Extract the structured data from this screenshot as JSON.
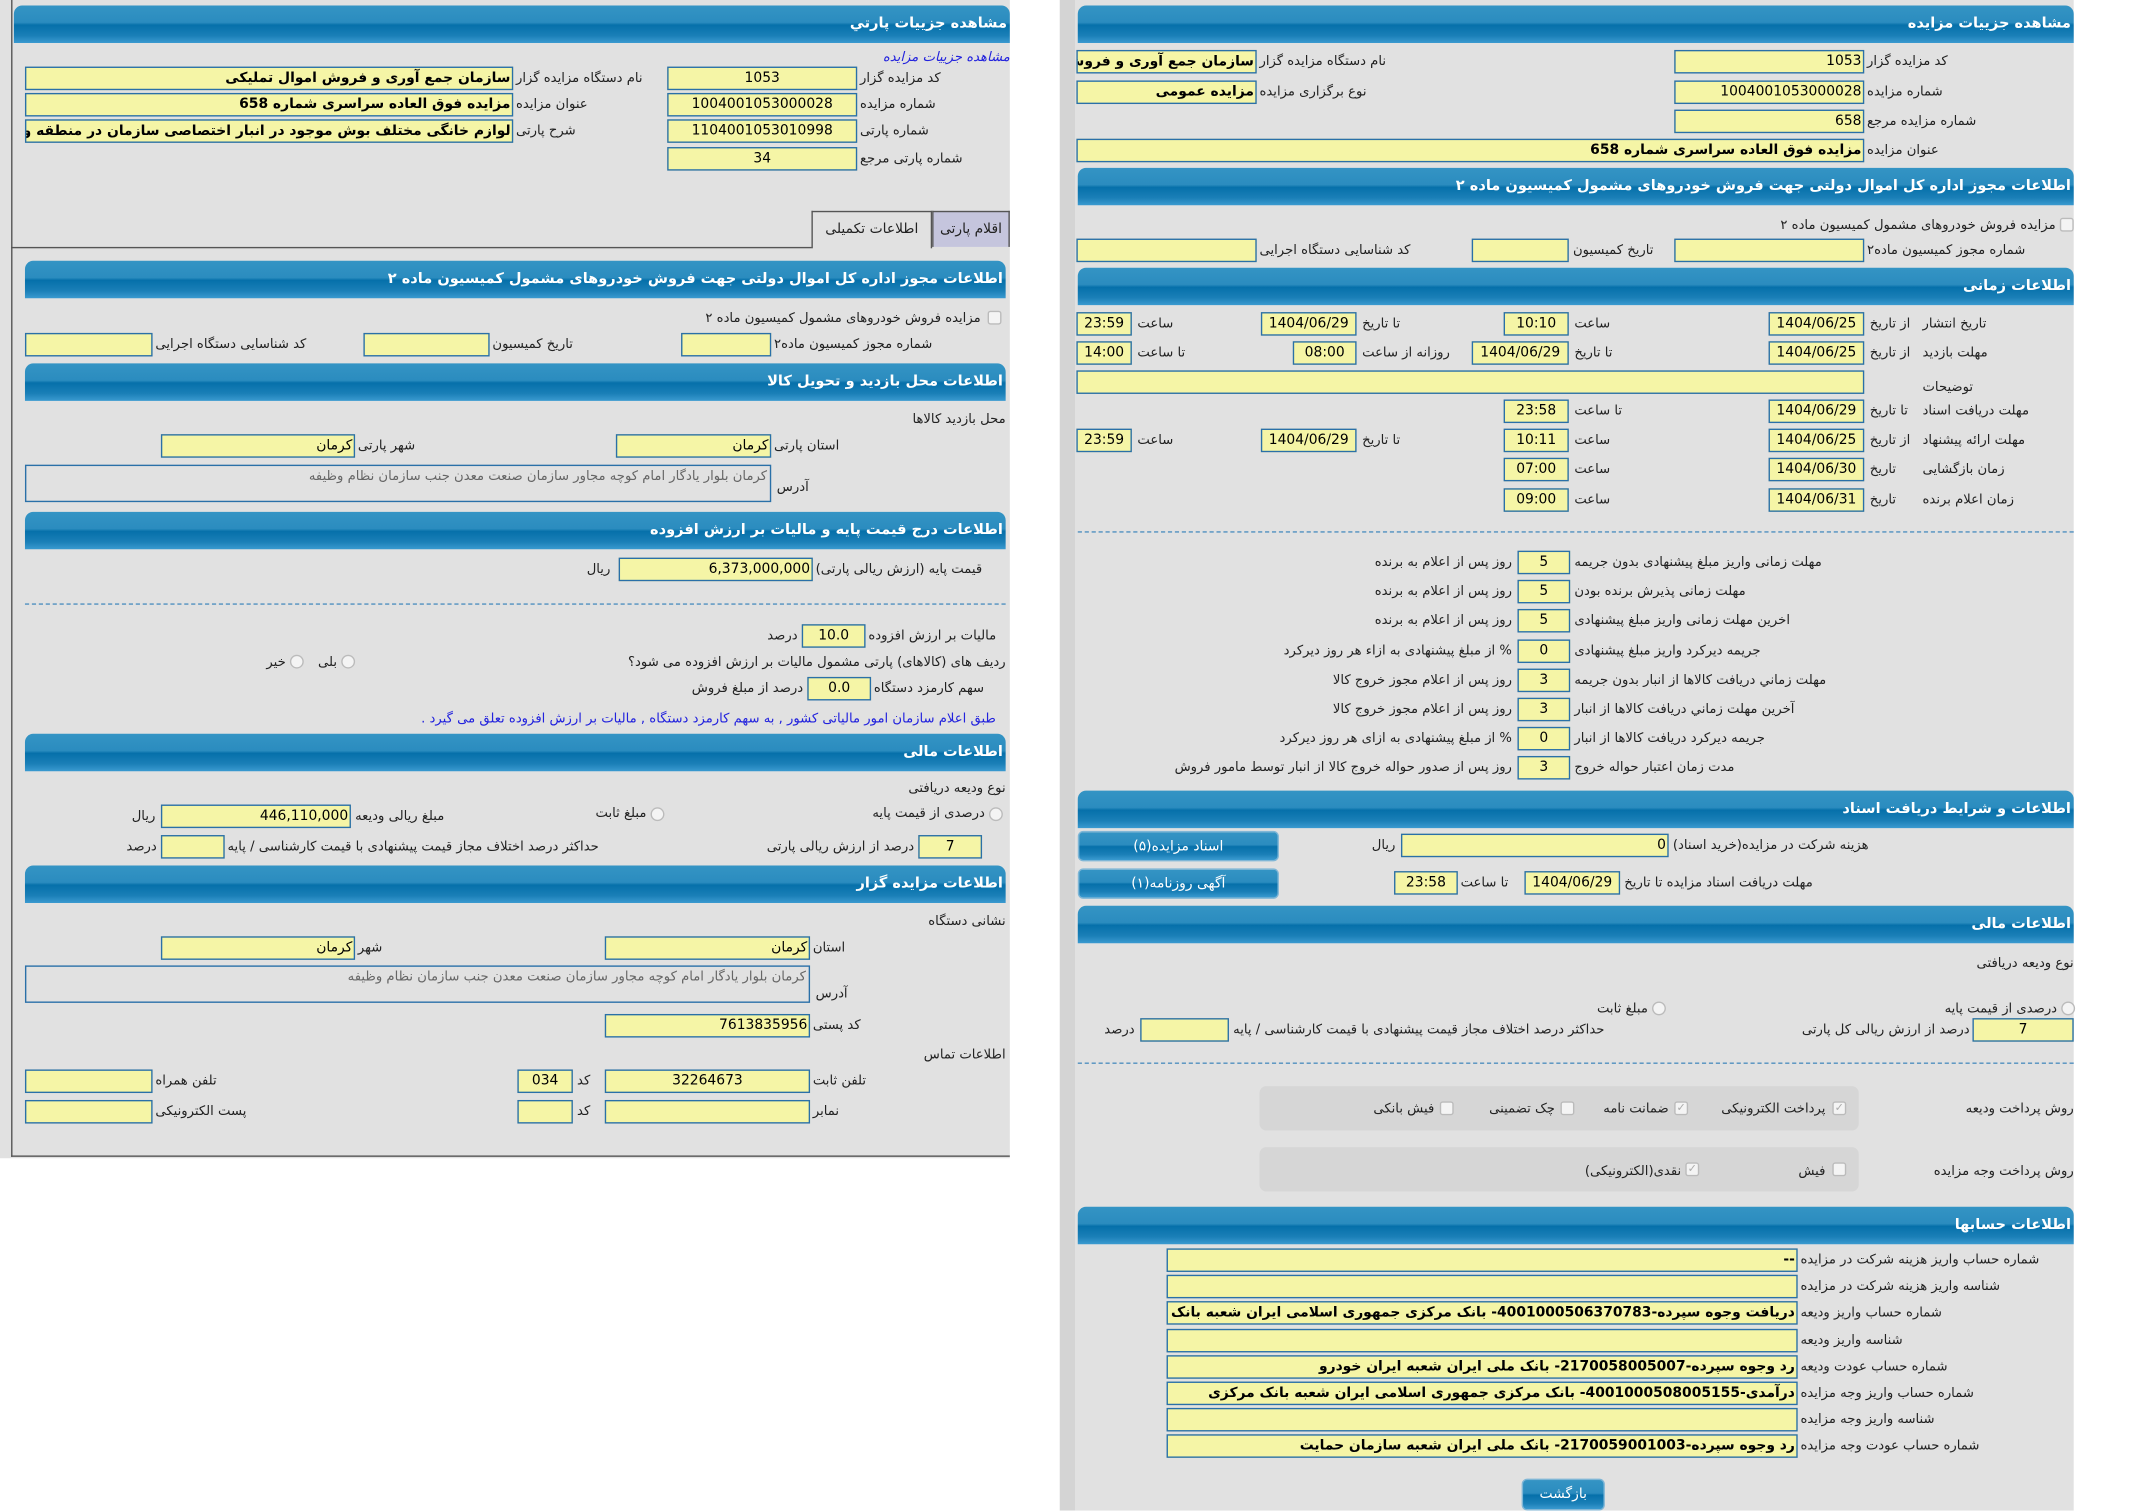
{
  "colors": {
    "header": "#0670aa",
    "input_bg": "#f5f5a6",
    "input_border": "#2a70a8",
    "panel_bg": "#e1e1e1",
    "link": "#2222dd"
  },
  "left_panel": {
    "title": "مشاهده جزييات پارتي",
    "breadcrumb": "مشاهده جزييات مزايده",
    "header": {
      "auctioneer_code_label": "كد مزايده گزار",
      "auctioneer_code": "1053",
      "auctioneer_name_label": "نام دستگاه مزايده گزار",
      "auctioneer_name": "سازمان جمع آوری و فروش اموال تمليكی",
      "auction_number_label": "شماره مزايده",
      "auction_number": "1004001053000028",
      "auction_title_label": "عنوان مزايده",
      "auction_title": "مزايده فوق العاده سراسری شماره 658",
      "lot_number_label": "شماره پارتی",
      "lot_number": "1104001053010998",
      "lot_description_label": "شرح پارتی",
      "lot_description": "لوازم خانگی مختلف بوش موجود در انبار اختصاصی سازمان در منطقه و",
      "lot_ref_label": "شماره پارتی مرجع",
      "lot_ref": "34"
    },
    "tabs": [
      "اقلام پارتی",
      "اطلاعات تكميلی"
    ],
    "license": {
      "title": "اطلاعات مجوز اداره كل اموال دولتی جهت فروش خودروهای مشمول كميسيون ماده ۲",
      "checkbox_label": "مزايده فروش خودروهای مشمول كميسيون ماده ۲",
      "number_label": "شماره مجوز كميسيون ماده۲",
      "number": "",
      "date_label": "تاريخ كميسيون",
      "date": "",
      "exec_code_label": "كد شناسايی دستگاه اجرايی",
      "exec_code": ""
    },
    "visit": {
      "title": "اطلاعات محل بازديد و تحويل كالا",
      "place_label": "محل بازديد كالاها",
      "province_label": "استان پارتی",
      "province": "كرمان",
      "city_label": "شهر پارتی",
      "city": "كرمان",
      "address_label": "آدرس",
      "address": "كرمان بلوار يادگار امام كوچه مجاور سازمان صنعت معدن جنب سازمان نظام وظيفه"
    },
    "price": {
      "title": "اطلاعات درج قيمت پايه و ماليات بر ارزش افزوده",
      "base_label": "قيمت پايه (ارزش ريالی پارتی)",
      "base_value": "6,373,000,000",
      "currency": "ريال",
      "vat_label": "ماليات بر ارزش افزوده",
      "vat_value": "10.0",
      "percent": "درصد",
      "vat_question": "رديف های (كالاهای) پارتی مشمول ماليات بر ارزش افزوده می شود؟",
      "yes": "بلی",
      "no": "خير",
      "fee_label": "سهم كارمزد دستگاه",
      "fee_value": "0.0",
      "fee_suffix": "درصد از مبلغ فروش",
      "note": "طبق اعلام سازمان امور مالياتی كشور , به سهم كارمزد دستگاه , ماليات بر ارزش افزوده تعلق می گيرد ."
    },
    "finance": {
      "title": "اطلاعات مالی",
      "deposit_type_label": "نوع وديعه دريافتی",
      "percent_option": "درصدی از قيمت پايه",
      "fixed_option": "مبلغ ثابت",
      "deposit_amount_label": "مبلغ ريالی وديعه",
      "deposit_amount": "446,110,000",
      "currency": "ريال",
      "percent_value": "7",
      "percent_suffix": "درصد از ارزش ريالی پارتی",
      "max_diff_label": "حداكثر درصد اختلاف مجاز قيمت پيشنهادی با قيمت كارشناسی / پايه",
      "max_diff_value": "",
      "percent": "درصد"
    },
    "auctioneer": {
      "title": "اطلاعات مزايده گزار",
      "address_heading": "نشانی دستگاه",
      "province_label": "استان",
      "province": "كرمان",
      "city_label": "شهر",
      "city": "كرمان",
      "address_label": "آدرس",
      "address": "كرمان بلوار يادگار امام كوچه مجاور سازمان صنعت معدن جنب سازمان نظام وظيفه",
      "postal_label": "كد پستی",
      "postal": "7613835956",
      "contact_heading": "اطلاعات تماس",
      "phone_label": "تلفن ثابت",
      "phone": "32264673",
      "code_label": "كد",
      "phone_code": "034",
      "mobile_label": "تلفن همراه",
      "mobile": "",
      "fax_label": "نمابر",
      "fax": "",
      "fax_code": "",
      "email_label": "پست الكترونيكی",
      "email": ""
    }
  },
  "right_panel": {
    "title": "مشاهده جزييات مزايده",
    "header": {
      "auctioneer_code_label": "كد مزايده گزار",
      "auctioneer_code": "1053",
      "auctioneer_name_label": "نام دستگاه مزايده گزار",
      "auctioneer_name": "سازمان جمع آوری و فروش",
      "auction_number_label": "شماره مزايده",
      "auction_number": "1004001053000028",
      "holding_type_label": "نوع برگزاری مزايده",
      "holding_type": "مزايده عمومی",
      "ref_label": "شماره مزايده مرجع",
      "ref": "658",
      "auction_title_label": "عنوان مزايده",
      "auction_title": "مزايده فوق العاده سراسری شماره 658"
    },
    "license": {
      "title": "اطلاعات مجوز اداره كل اموال دولتی جهت فروش خودروهای مشمول كميسيون ماده ۲",
      "checkbox_label": "مزايده فروش خودروهای مشمول كميسيون ماده ۲",
      "number_label": "شماره مجوز كميسيون ماده۲",
      "number": "",
      "date_label": "تاريخ كميسيون",
      "date": "",
      "exec_code_label": "كد شناسايی دستگاه اجرايی",
      "exec_code": ""
    },
    "timing": {
      "title": "اطلاعات زمانی",
      "from_date": "از تاريخ",
      "to_date": "تا تاريخ",
      "date": "تاريخ",
      "hour": "ساعت",
      "to_hour": "تا ساعت",
      "daily_from_hour": "روزانه از ساعت",
      "publish": {
        "label": "تاريخ انتشار",
        "from": "1404/06/25",
        "from_time": "10:10",
        "to": "1404/06/29",
        "to_time": "23:59"
      },
      "visit": {
        "label": "مهلت بازديد",
        "from": "1404/06/25",
        "to": "1404/06/29",
        "daily_from": "08:00",
        "daily_to": "14:00"
      },
      "notes_label": "توضيحات",
      "notes": "",
      "docs": {
        "label": "مهلت دريافت اسناد",
        "to": "1404/06/29",
        "to_time": "23:58"
      },
      "offers": {
        "label": "مهلت ارائه پيشنهاد",
        "from": "1404/06/25",
        "from_time": "10:11",
        "to": "1404/06/29",
        "to_time": "23:59"
      },
      "opening": {
        "label": "زمان بازگشايی",
        "date": "1404/06/30",
        "time": "07:00"
      },
      "winner": {
        "label": "زمان اعلام برنده",
        "date": "1404/06/31",
        "time": "09:00"
      }
    },
    "rules": [
      {
        "label": "مهلت زمانی واريز مبلغ پيشنهادی بدون جريمه",
        "value": "5",
        "suffix": "روز پس از اعلام به برنده"
      },
      {
        "label": "مهلت زمانی پذيرش برنده بودن",
        "value": "5",
        "suffix": "روز پس از اعلام به برنده"
      },
      {
        "label": "اخرين مهلت زمانی واريز مبلغ پيشنهادی",
        "value": "5",
        "suffix": "روز پس از اعلام به برنده"
      },
      {
        "label": "جريمه ديركرد واريز مبلغ پيشنهادی",
        "value": "0",
        "suffix": "% از مبلغ پيشنهادی به ازاء هر روز ديركرد"
      },
      {
        "label": "مهلت زماني دريافت كالاها از انبار بدون جريمه",
        "value": "3",
        "suffix": "روز پس از اعلام مجوز خروج كالا"
      },
      {
        "label": "آخرين مهلت زماني دريافت كالاها از انبار",
        "value": "3",
        "suffix": "روز پس از اعلام مجوز خروج كالا"
      },
      {
        "label": "جريمه ديركرد دريافت كالاها از انبار",
        "value": "0",
        "suffix": "% از مبلغ پيشنهادی به ازای هر روز ديركرد"
      },
      {
        "label": "مدت زمان اعتبار حواله خروج",
        "value": "3",
        "suffix": "روز پس از صدور حواله خروج كالا از انبار توسط مامور فروش"
      }
    ],
    "documents": {
      "title": "اطلاعات و شرايط دريافت اسناد",
      "fee_label": "هزينه شركت در مزايده(خريد اسناد)",
      "fee": "0",
      "currency": "ريال",
      "deadline_label": "مهلت دريافت اسناد مزايده تا تاريخ",
      "deadline_date": "1404/06/29",
      "to_hour": "تا ساعت",
      "deadline_time": "23:58",
      "docs_button": "اسناد مزايده(۵)",
      "ads_button": "آگهی روزنامه(۱)"
    },
    "finance": {
      "title": "اطلاعات مالی",
      "deposit_type_label": "نوع وديعه دريافتی",
      "percent_option": "درصدی از قيمت پايه",
      "fixed_option": "مبلغ ثابت",
      "percent_value": "7",
      "percent_suffix": "درصد از ارزش ريالی كل پارتی",
      "max_diff_label": "حداكثر درصد اختلاف مجاز قيمت پيشنهادی با قيمت كارشناسی / پايه",
      "max_diff_value": "",
      "percent": "درصد",
      "deposit_methods_label": "روش پرداخت وديعه",
      "deposit_methods": [
        {
          "label": "پرداخت الكترونيكی",
          "checked": true
        },
        {
          "label": "ضمانت نامه",
          "checked": true
        },
        {
          "label": "چک تضمينی",
          "checked": false
        },
        {
          "label": "فيش بانكی",
          "checked": false
        }
      ],
      "payment_methods_label": "روش پرداخت وجه مزايده",
      "payment_methods": [
        {
          "label": "فيش",
          "checked": false
        },
        {
          "label": "نقدی(الكترونيكی)",
          "checked": true
        }
      ]
    },
    "accounts": {
      "title": "اطلاعات حسابها",
      "rows": [
        {
          "label": "شماره حساب واريز هزينه شركت در مزايده",
          "value": "--"
        },
        {
          "label": "شناسه واريز هزينه شركت در مزايده",
          "value": ""
        },
        {
          "label": "شماره حساب واريز وديعه",
          "value": "دريافت وجوه سپرده-4001000506370783- بانک مركزی جمهوری اسلامی ايران شعبه بانک"
        },
        {
          "label": "شناسه واريز وديعه",
          "value": ""
        },
        {
          "label": "شماره حساب عودت وديعه",
          "value": "رد وجوه سپرده-2170058005007- بانک ملی ايران شعبه ايران خودرو"
        },
        {
          "label": "شماره حساب واريز وجه مزايده",
          "value": "درآمدی-4001000508005155- بانک مركزی جمهوری اسلامی ايران شعبه بانک مركزی"
        },
        {
          "label": "شناسه واريز وجه مزايده",
          "value": ""
        },
        {
          "label": "شماره حساب عودت وجه مزايده",
          "value": "رد وجوه سپرده-2170059001003- بانک ملی ايران شعبه سازمان حمايت"
        }
      ]
    },
    "back_button": "بازگشت"
  }
}
